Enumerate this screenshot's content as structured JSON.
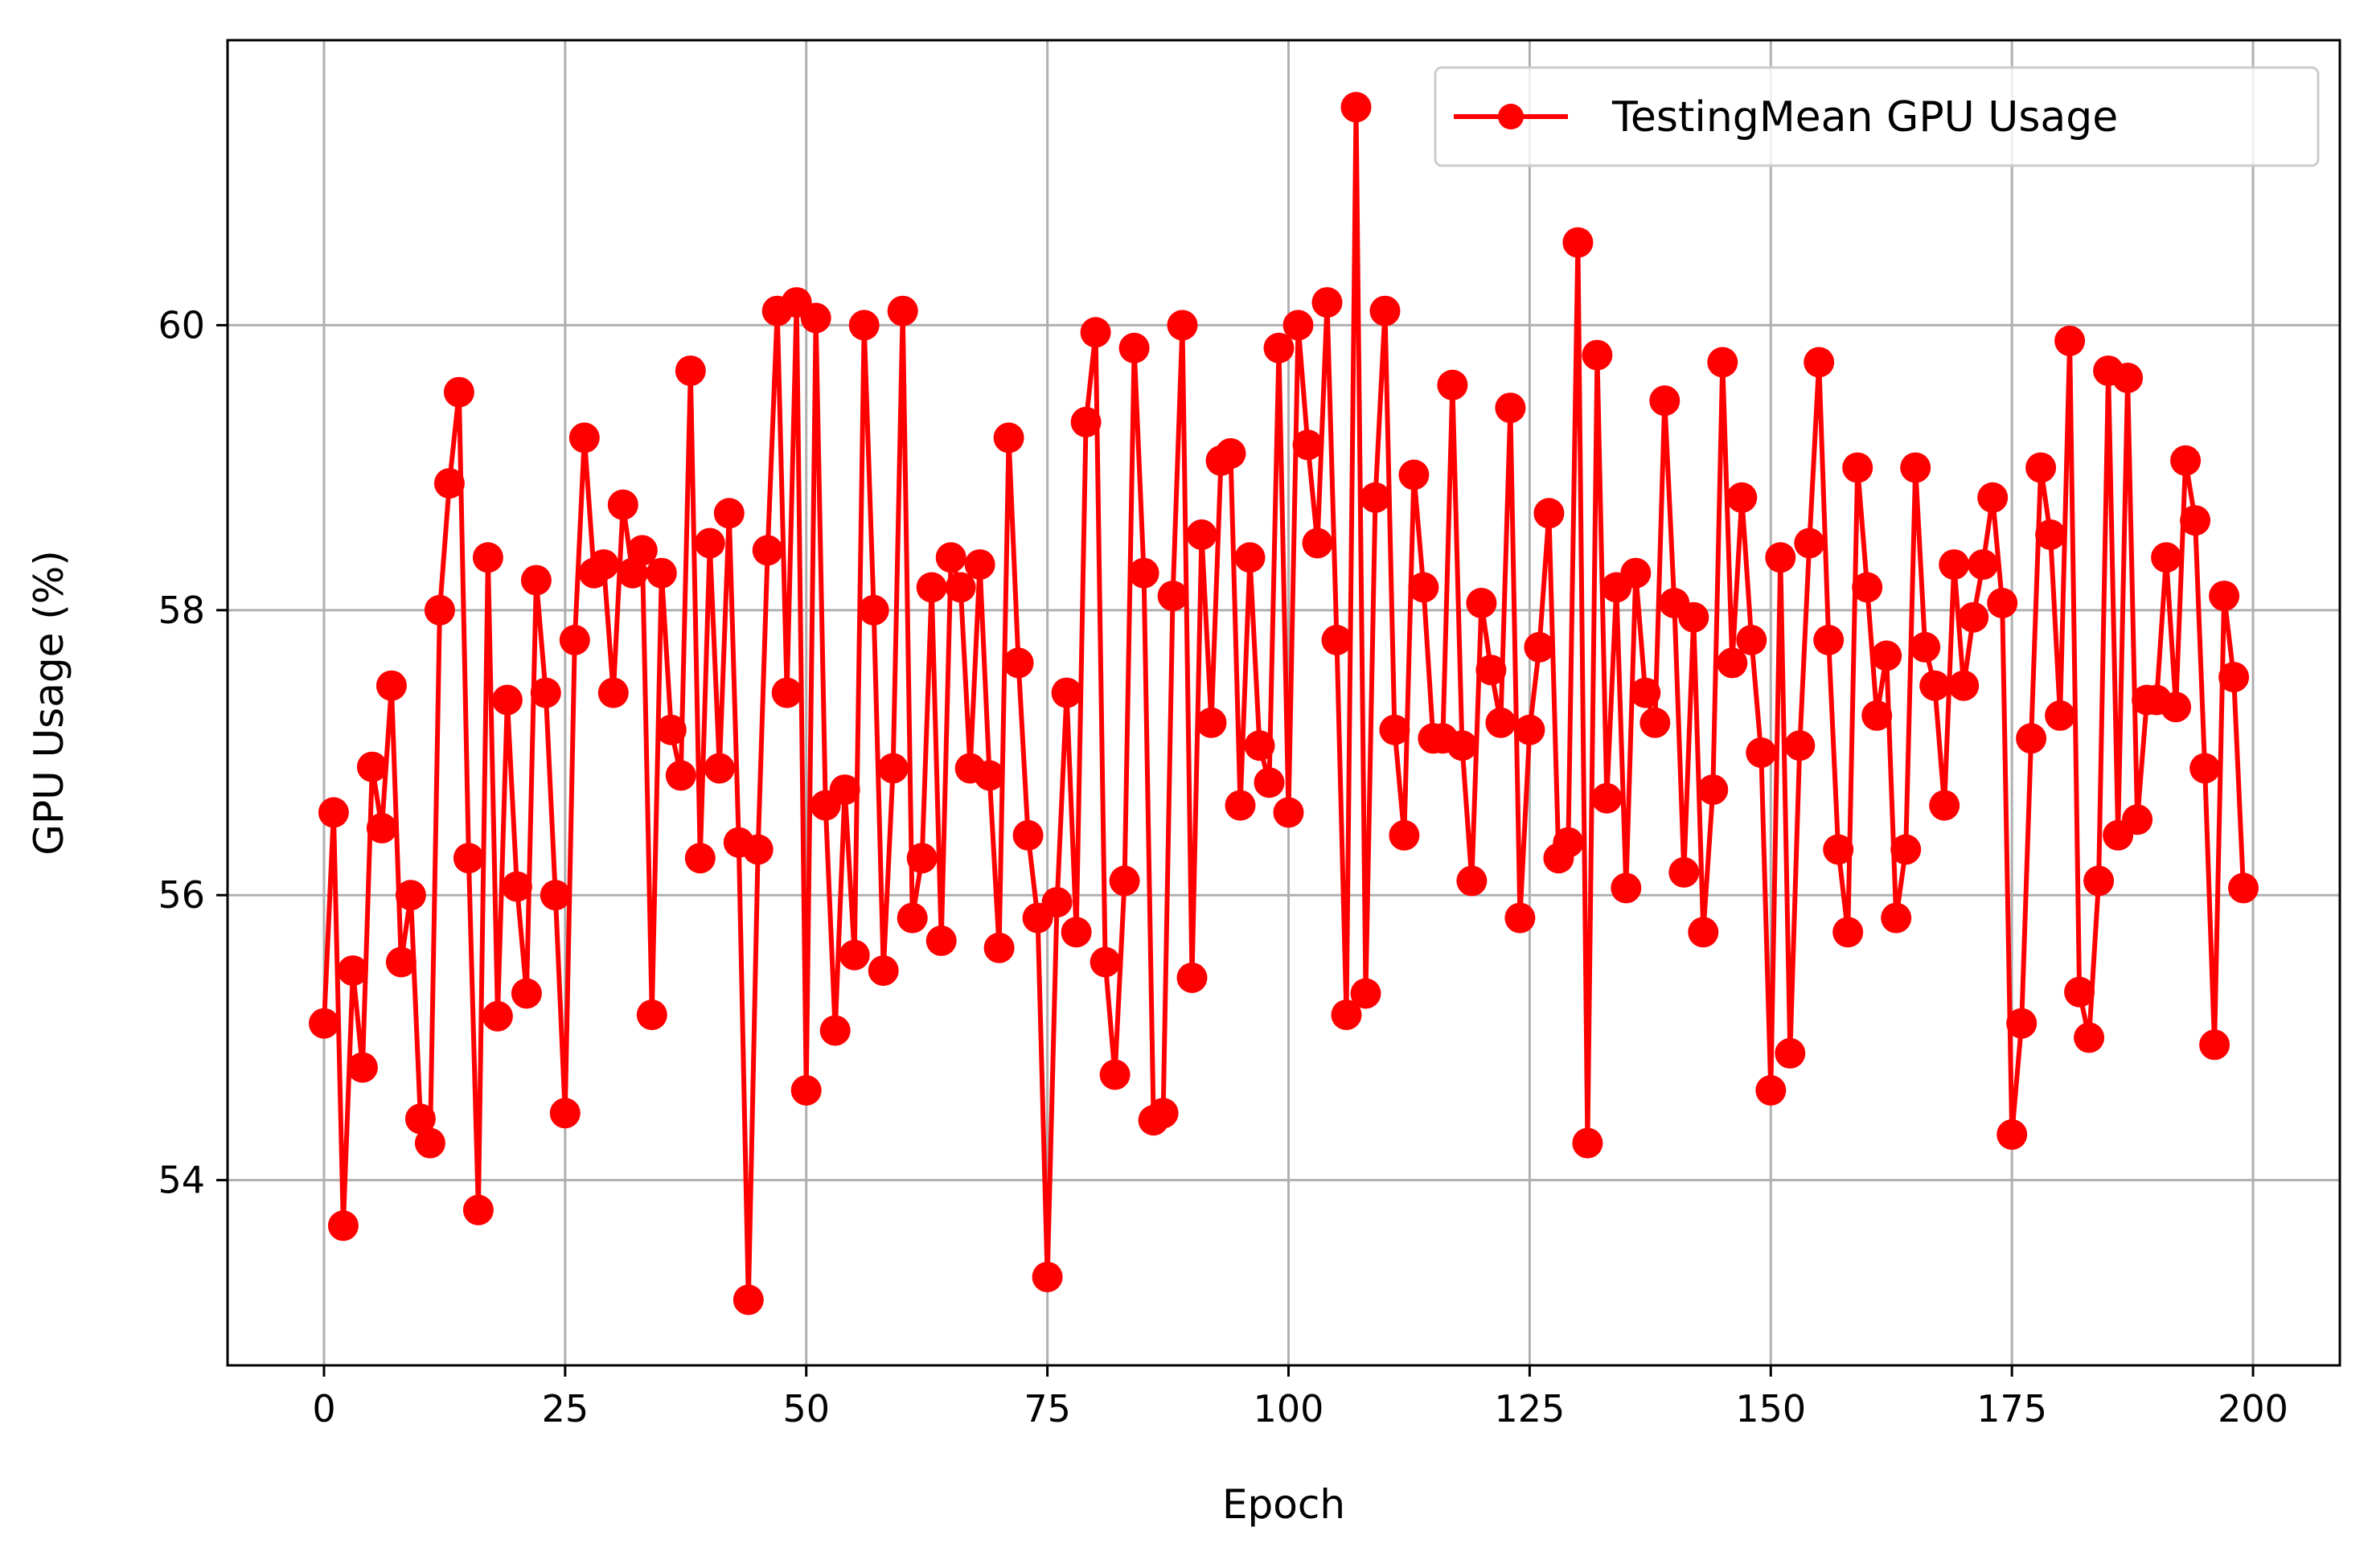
{
  "chart_data": {
    "type": "line",
    "xlabel": "Epoch",
    "ylabel": "GPU Usage (%)",
    "xlim": [
      -10,
      209
    ],
    "ylim": [
      52.7,
      62.0
    ],
    "xticks": [
      0,
      25,
      50,
      75,
      100,
      125,
      150,
      175,
      200
    ],
    "yticks": [
      54,
      56,
      58,
      60
    ],
    "grid": true,
    "legend_position": "top-right",
    "color": "#ff0000",
    "series": [
      {
        "name": "TestingMean GPU Usage",
        "marker": "circle",
        "x": [
          0,
          1,
          2,
          3,
          4,
          5,
          6,
          7,
          8,
          9,
          10,
          11,
          12,
          13,
          14,
          15,
          16,
          17,
          18,
          19,
          20,
          21,
          22,
          23,
          24,
          25,
          26,
          27,
          28,
          29,
          30,
          31,
          32,
          33,
          34,
          35,
          36,
          37,
          38,
          39,
          40,
          41,
          42,
          43,
          44,
          45,
          46,
          47,
          48,
          49,
          50,
          51,
          52,
          53,
          54,
          55,
          56,
          57,
          58,
          59,
          60,
          61,
          62,
          63,
          64,
          65,
          66,
          67,
          68,
          69,
          70,
          71,
          72,
          73,
          74,
          75,
          76,
          77,
          78,
          79,
          80,
          81,
          82,
          83,
          84,
          85,
          86,
          87,
          88,
          89,
          90,
          91,
          92,
          93,
          94,
          95,
          96,
          97,
          98,
          99,
          100,
          101,
          102,
          103,
          104,
          105,
          106,
          107,
          108,
          109,
          110,
          111,
          112,
          113,
          114,
          115,
          116,
          117,
          118,
          119,
          120,
          121,
          122,
          123,
          124,
          125,
          126,
          127,
          128,
          129,
          130,
          131,
          132,
          133,
          134,
          135,
          136,
          137,
          138,
          139,
          140,
          141,
          142,
          143,
          144,
          145,
          146,
          147,
          148,
          149,
          150,
          151,
          152,
          153,
          154,
          155,
          156,
          157,
          158,
          159,
          160,
          161,
          162,
          163,
          164,
          165,
          166,
          167,
          168,
          169,
          170,
          171,
          172,
          173,
          174,
          175,
          176,
          177,
          178,
          179,
          180,
          181,
          182,
          183,
          184,
          185,
          186,
          187,
          188,
          189,
          190,
          191,
          192,
          193,
          194,
          195,
          196,
          197,
          198,
          199
        ],
        "values": [
          55.1,
          56.58,
          53.68,
          55.47,
          54.79,
          56.9,
          56.47,
          57.47,
          55.53,
          56.0,
          54.43,
          54.26,
          58.0,
          58.89,
          59.53,
          56.26,
          53.79,
          58.37,
          55.15,
          57.37,
          56.06,
          55.31,
          58.21,
          57.42,
          56.0,
          54.47,
          57.79,
          59.21,
          58.26,
          58.32,
          57.42,
          58.74,
          58.26,
          58.42,
          55.16,
          58.26,
          57.16,
          56.84,
          59.68,
          56.26,
          58.47,
          56.89,
          58.68,
          56.37,
          53.16,
          56.32,
          58.42,
          60.1,
          57.42,
          60.16,
          54.63,
          60.05,
          56.63,
          55.05,
          56.74,
          55.58,
          60.0,
          58.0,
          55.47,
          56.89,
          60.1,
          55.84,
          56.26,
          58.16,
          55.68,
          58.37,
          58.16,
          56.89,
          58.32,
          56.84,
          55.63,
          59.21,
          57.63,
          56.42,
          55.84,
          53.32,
          55.95,
          57.42,
          55.74,
          59.32,
          59.95,
          55.53,
          54.74,
          56.1,
          59.84,
          58.26,
          54.42,
          54.47,
          58.1,
          60.0,
          55.42,
          58.53,
          57.21,
          59.05,
          59.1,
          56.63,
          58.37,
          57.05,
          56.79,
          59.84,
          56.58,
          60.0,
          59.16,
          58.47,
          60.16,
          57.79,
          55.16,
          61.53,
          55.31,
          58.79,
          60.1,
          57.16,
          56.42,
          58.95,
          58.16,
          57.1,
          57.1,
          59.58,
          57.05,
          56.1,
          58.05,
          57.58,
          57.21,
          59.42,
          55.84,
          57.16,
          57.74,
          58.68,
          56.26,
          56.37,
          60.58,
          54.26,
          59.79,
          56.68,
          58.16,
          56.05,
          58.26,
          57.42,
          57.21,
          59.47,
          58.05,
          56.16,
          57.95,
          55.74,
          56.74,
          59.74,
          57.63,
          58.79,
          57.79,
          57.0,
          54.63,
          58.37,
          54.89,
          57.05,
          58.47,
          59.74,
          57.79,
          56.32,
          55.74,
          59.0,
          58.16,
          57.26,
          57.68,
          55.84,
          56.32,
          59.0,
          57.74,
          57.47,
          56.63,
          58.32,
          57.47,
          57.95,
          58.32,
          58.79,
          58.05,
          54.32,
          55.1,
          57.1,
          59.0,
          58.53,
          57.26,
          59.89,
          55.32,
          55.0,
          56.1,
          59.68,
          56.42,
          59.63,
          56.53,
          57.37,
          57.37,
          58.37,
          57.32,
          59.05,
          58.63,
          56.89,
          54.95,
          58.1,
          57.53,
          56.05
        ]
      }
    ]
  }
}
